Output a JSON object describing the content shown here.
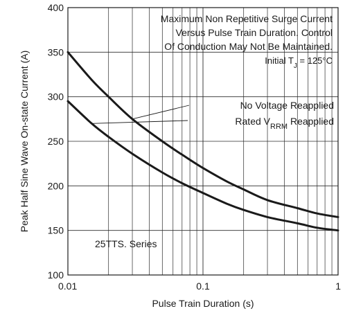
{
  "chart_data": {
    "type": "line",
    "title_lines": [
      "Maximum Non Repetitive Surge Current",
      "Versus Pulse Train Duration. Control",
      "Of Conduction May Not Be Maintained.",
      "Initial T_J = 125°C"
    ],
    "xlabel": "Pulse Train Duration (s)",
    "ylabel": "Peak Half Sine Wave On-state Current (A)",
    "x_scale": "log",
    "xlim": [
      0.01,
      1
    ],
    "ylim": [
      100,
      400
    ],
    "x_ticks": [
      {
        "value": 0.01,
        "label": "0.01"
      },
      {
        "value": 0.1,
        "label": "0.1"
      },
      {
        "value": 1,
        "label": "1"
      }
    ],
    "y_ticks": [
      {
        "value": 100,
        "label": "100"
      },
      {
        "value": 150,
        "label": "150"
      },
      {
        "value": 200,
        "label": "200"
      },
      {
        "value": 250,
        "label": "250"
      },
      {
        "value": 300,
        "label": "300"
      },
      {
        "value": 350,
        "label": "350"
      },
      {
        "value": 400,
        "label": "400"
      }
    ],
    "grid": true,
    "series": [
      {
        "name": "No Voltage Reapplied",
        "x": [
          0.01,
          0.015,
          0.02,
          0.03,
          0.05,
          0.07,
          0.1,
          0.15,
          0.2,
          0.3,
          0.5,
          0.7,
          1.0
        ],
        "y": [
          350,
          319,
          300,
          275,
          250,
          235,
          220,
          205,
          196,
          184,
          175,
          169,
          165
        ]
      },
      {
        "name": "Rated V_RRM Reapplied",
        "x": [
          0.01,
          0.015,
          0.02,
          0.03,
          0.05,
          0.07,
          0.1,
          0.15,
          0.2,
          0.3,
          0.5,
          0.7,
          1.0
        ],
        "y": [
          295,
          270,
          255,
          236,
          215,
          203,
          192,
          180,
          173,
          165,
          158,
          153,
          150
        ]
      }
    ],
    "legend": [
      {
        "text": "No Voltage Reapplied",
        "sub": ""
      },
      {
        "text": "Rated V",
        "sub": "RRM",
        "after": " Reapplied"
      }
    ],
    "tj_label": {
      "prefix": "Initial T",
      "sub": "J",
      "suffix": " = 125°C"
    },
    "annotation": "25TTS. Series"
  }
}
